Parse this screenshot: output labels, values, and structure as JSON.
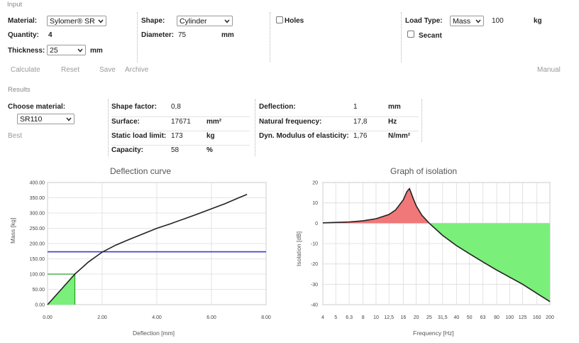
{
  "input": {
    "section_title": "Input",
    "material_label": "Material:",
    "material_value": "Sylomer® SR",
    "quantity_label": "Quantity:",
    "quantity_value": "4",
    "thickness_label": "Thickness:",
    "thickness_value": "25",
    "thickness_unit": "mm",
    "shape_label": "Shape:",
    "shape_value": "Cylinder",
    "diameter_label": "Diameter:",
    "diameter_value": "75",
    "diameter_unit": "mm",
    "holes_label": "Holes",
    "load_type_label": "Load Type:",
    "load_type_value": "Mass",
    "load_value": "100",
    "load_unit": "kg",
    "secant_label": "Secant"
  },
  "toolbar": {
    "calculate": "Calculate",
    "reset": "Reset",
    "save": "Save",
    "archive": "Archive",
    "manual": "Manual"
  },
  "results": {
    "section_title": "Results",
    "choose_material_label": "Choose material:",
    "choose_material_value": "SR110",
    "best_label": "Best",
    "shape_factor_label": "Shape factor:",
    "shape_factor_value": "0,8",
    "surface_label": "Surface:",
    "surface_value": "17671",
    "surface_unit": "mm²",
    "static_load_label": "Static load limit:",
    "static_load_value": "173",
    "static_load_unit": "kg",
    "capacity_label": "Capacity:",
    "capacity_value": "58",
    "capacity_unit": "%",
    "deflection_label": "Deflection:",
    "deflection_value": "1",
    "deflection_unit": "mm",
    "nat_freq_label": "Natural frequency:",
    "nat_freq_value": "17,8",
    "nat_freq_unit": "Hz",
    "dyn_mod_label": "Dyn. Modulus of elasticity:",
    "dyn_mod_value": "1,76",
    "dyn_mod_unit": "N/mm²"
  },
  "colors": {
    "curve": "#222222",
    "static_limit_line": "#3a3acc",
    "green_fill": "#7aef7a",
    "red_fill": "#f07878",
    "plot_border": "#999999"
  },
  "chart_data": [
    {
      "type": "line",
      "title": "Deflection curve",
      "xlabel": "Deflection [mm]",
      "ylabel": "Mass [kg]",
      "xlim": [
        0,
        8
      ],
      "ylim": [
        0,
        400
      ],
      "x_ticks": [
        "0.00",
        "2.00",
        "4.00",
        "6.00",
        "8.00"
      ],
      "y_ticks": [
        "0.00",
        "50.00",
        "100.00",
        "150.00",
        "200.00",
        "250.00",
        "300.00",
        "350.00",
        "400.00"
      ],
      "grid": true,
      "series": [
        {
          "x": [
            0,
            0.5,
            1.0,
            1.5,
            2.0,
            2.5,
            3.0,
            3.5,
            4.0,
            4.5,
            5.0,
            5.5,
            6.0,
            6.5,
            7.0,
            7.3
          ],
          "values": [
            0,
            50,
            100,
            140,
            172,
            195,
            214,
            232,
            250,
            265,
            281,
            297,
            314,
            331,
            350,
            361
          ]
        }
      ],
      "static_load_limit": 173,
      "operating_point": {
        "x": 1,
        "y": 100
      }
    },
    {
      "type": "line",
      "title": "Graph of isolation",
      "xlabel": "Frequency [Hz]",
      "ylabel": "Isolation [dB]",
      "x_ticks": [
        "4",
        "5",
        "6.3",
        "8",
        "10",
        "12,5",
        "16",
        "20",
        "25",
        "31,5",
        "40",
        "50",
        "63",
        "80",
        "100",
        "125",
        "160",
        "200"
      ],
      "ylim": [
        -40,
        20
      ],
      "y_ticks": [
        "20",
        "10",
        "0",
        "-10",
        "-20",
        "-30",
        "-40"
      ],
      "grid": true,
      "series": [
        {
          "x": [
            4,
            6.3,
            8,
            10,
            12.5,
            14,
            16,
            17,
            17.8,
            19,
            20,
            22,
            25,
            31.5,
            40,
            50,
            63,
            80,
            100,
            125,
            160,
            200
          ],
          "values": [
            0.2,
            0.6,
            1.2,
            2.2,
            4.3,
            6.5,
            11.5,
            15.5,
            17.0,
            12.0,
            8.5,
            4.0,
            0.0,
            -6.0,
            -11.0,
            -15.0,
            -19.0,
            -23.0,
            -26.5,
            -30.0,
            -34.5,
            -38.5
          ]
        }
      ],
      "amplification_region": [
        4,
        25
      ],
      "isolation_region": [
        25,
        200
      ]
    }
  ]
}
